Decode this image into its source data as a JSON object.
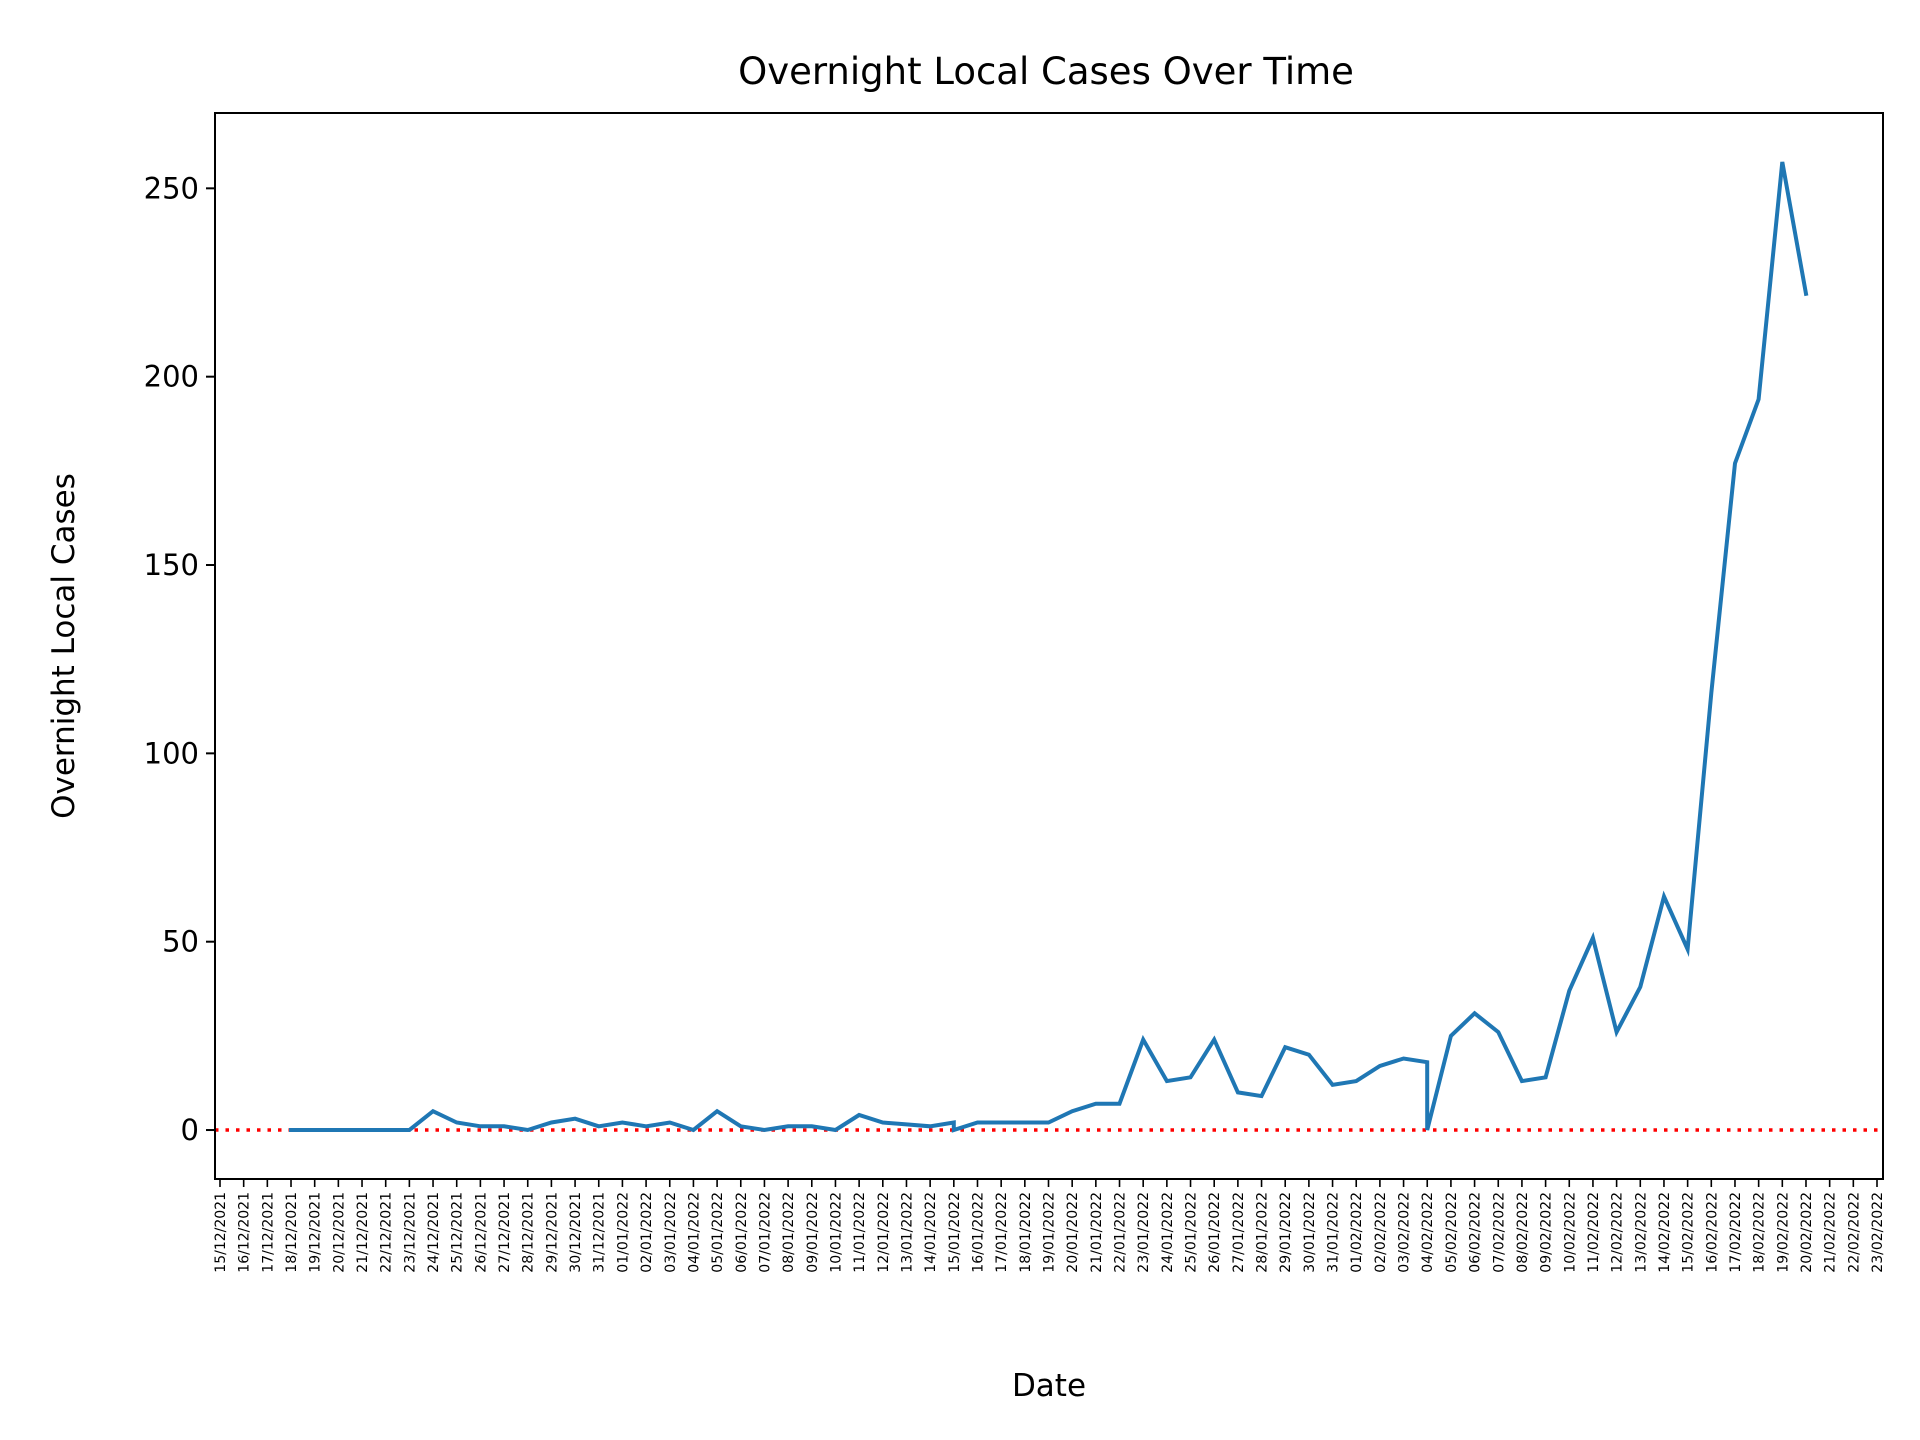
{
  "chart_data": {
    "type": "line",
    "title": "Overnight Local Cases Over Time",
    "xlabel": "Date",
    "ylabel": "Overnight Local Cases",
    "ylim": [
      -13,
      270
    ],
    "yticks": [
      0,
      50,
      100,
      150,
      200,
      250
    ],
    "ytick_labels": [
      "0",
      "50",
      "100",
      "150",
      "200",
      "250"
    ],
    "grid": false,
    "legend": "none",
    "colors": {
      "line": "#1f77b4",
      "reference": "#ff0000",
      "axes": "#000000"
    },
    "reference_line": {
      "y": 0,
      "style": "dotted"
    },
    "x_ticks": [
      "15/12/2021",
      "16/12/2021",
      "17/12/2021",
      "18/12/2021",
      "19/12/2021",
      "20/12/2021",
      "21/12/2021",
      "22/12/2021",
      "23/12/2021",
      "24/12/2021",
      "25/12/2021",
      "26/12/2021",
      "27/12/2021",
      "28/12/2021",
      "29/12/2021",
      "30/12/2021",
      "31/12/2021",
      "01/01/2022",
      "02/01/2022",
      "03/01/2022",
      "04/01/2022",
      "05/01/2022",
      "06/01/2022",
      "07/01/2022",
      "08/01/2022",
      "09/01/2022",
      "10/01/2022",
      "11/01/2022",
      "12/01/2022",
      "13/01/2022",
      "14/01/2022",
      "15/01/2022",
      "16/01/2022",
      "17/01/2022",
      "18/01/2022",
      "19/01/2022",
      "20/01/2022",
      "21/01/2022",
      "22/01/2022",
      "23/01/2022",
      "24/01/2022",
      "25/01/2022",
      "26/01/2022",
      "27/01/2022",
      "28/01/2022",
      "29/01/2022",
      "30/01/2022",
      "31/01/2022",
      "01/02/2022",
      "02/02/2022",
      "03/02/2022",
      "04/02/2022",
      "05/02/2022",
      "06/02/2022",
      "07/02/2022",
      "08/02/2022",
      "09/02/2022",
      "10/02/2022",
      "11/02/2022",
      "12/02/2022",
      "13/02/2022",
      "14/02/2022",
      "15/02/2022",
      "16/02/2022",
      "17/02/2022",
      "18/02/2022",
      "19/02/2022",
      "20/02/2022",
      "21/02/2022",
      "22/02/2022",
      "23/02/2022"
    ],
    "series": [
      {
        "points": [
          [
            "18/12/2021",
            0
          ],
          [
            "19/12/2021",
            0
          ],
          [
            "20/12/2021",
            0
          ],
          [
            "21/12/2021",
            0
          ],
          [
            "22/12/2021",
            0
          ],
          [
            "23/12/2021",
            0
          ],
          [
            "24/12/2021",
            5
          ],
          [
            "25/12/2021",
            2
          ],
          [
            "26/12/2021",
            1
          ],
          [
            "27/12/2021",
            1
          ],
          [
            "28/12/2021",
            0
          ],
          [
            "29/12/2021",
            2
          ],
          [
            "30/12/2021",
            3
          ],
          [
            "31/12/2021",
            1
          ],
          [
            "01/01/2022",
            2
          ],
          [
            "02/01/2022",
            1
          ],
          [
            "03/01/2022",
            2
          ],
          [
            "04/01/2022",
            0
          ],
          [
            "05/01/2022",
            5
          ],
          [
            "06/01/2022",
            1
          ],
          [
            "07/01/2022",
            0
          ],
          [
            "08/01/2022",
            1
          ],
          [
            "09/01/2022",
            1
          ],
          [
            "10/01/2022",
            0
          ],
          [
            "11/01/2022",
            4
          ],
          [
            "12/01/2022",
            2
          ],
          [
            "13/01/2022",
            1.5
          ],
          [
            "14/01/2022",
            1
          ],
          [
            "15/01/2022",
            2
          ],
          [
            "15/01/2022",
            0
          ],
          [
            "16/01/2022",
            2
          ],
          [
            "17/01/2022",
            2
          ],
          [
            "18/01/2022",
            2
          ],
          [
            "19/01/2022",
            2
          ],
          [
            "20/01/2022",
            5
          ],
          [
            "21/01/2022",
            7
          ],
          [
            "22/01/2022",
            7
          ],
          [
            "23/01/2022",
            24
          ],
          [
            "24/01/2022",
            13
          ],
          [
            "25/01/2022",
            14
          ],
          [
            "26/01/2022",
            24
          ],
          [
            "27/01/2022",
            10
          ],
          [
            "28/01/2022",
            9
          ],
          [
            "29/01/2022",
            22
          ],
          [
            "30/01/2022",
            20
          ],
          [
            "31/01/2022",
            12
          ],
          [
            "01/02/2022",
            13
          ],
          [
            "02/02/2022",
            17
          ],
          [
            "03/02/2022",
            19
          ],
          [
            "04/02/2022",
            18
          ],
          [
            "04/02/2022",
            0
          ],
          [
            "05/02/2022",
            25
          ],
          [
            "06/02/2022",
            31
          ],
          [
            "07/02/2022",
            26
          ],
          [
            "08/02/2022",
            13
          ],
          [
            "09/02/2022",
            14
          ],
          [
            "10/02/2022",
            37
          ],
          [
            "11/02/2022",
            51
          ],
          [
            "12/02/2022",
            26
          ],
          [
            "13/02/2022",
            38
          ],
          [
            "14/02/2022",
            62
          ],
          [
            "15/02/2022",
            48
          ],
          [
            "16/02/2022",
            116
          ],
          [
            "17/02/2022",
            177
          ],
          [
            "18/02/2022",
            194
          ],
          [
            "19/02/2022",
            257
          ],
          [
            "20/02/2022",
            222
          ]
        ]
      }
    ]
  }
}
